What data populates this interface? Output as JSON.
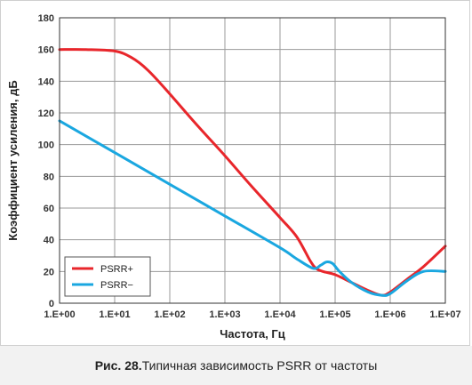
{
  "caption": {
    "lead": "Рис. 28.",
    "text": " Типичная зависимость PSRR от частоты"
  },
  "chart_data": {
    "type": "line",
    "title": "",
    "xlabel": "Частота, Гц",
    "ylabel": "Коэффициент усиления, дБ",
    "xscale": "log",
    "xlim": [
      1,
      10000000
    ],
    "ylim": [
      0,
      180
    ],
    "grid": true,
    "legend_position": "bottom-left",
    "x_ticks": [
      1,
      10,
      100,
      1000,
      10000,
      100000,
      1000000,
      10000000
    ],
    "x_tick_labels": [
      "1.E+00",
      "1.E+01",
      "1.E+02",
      "1.E+03",
      "1.E+04",
      "1.E+05",
      "1.E+06",
      "1.E+07"
    ],
    "y_ticks": [
      0,
      20,
      40,
      60,
      80,
      100,
      120,
      140,
      160,
      180
    ],
    "y_tick_labels": [
      "0",
      "20",
      "40",
      "60",
      "80",
      "100",
      "120",
      "140",
      "160",
      "180"
    ],
    "series": [
      {
        "name": "PSRR+",
        "color": "#e8262b",
        "x": [
          1,
          3,
          10,
          20,
          40,
          100,
          300,
          1000,
          3000,
          10000,
          20000,
          35000,
          45000,
          60000,
          100000,
          200000,
          400000,
          700000,
          1000000,
          2000000,
          4000000,
          10000000
        ],
        "y": [
          160,
          160,
          159,
          155,
          147,
          132,
          113,
          93,
          74,
          54,
          42,
          27,
          22,
          20,
          18,
          13,
          8,
          5,
          7,
          15,
          23,
          36
        ]
      },
      {
        "name": "PSRR−",
        "color": "#1aa7e0",
        "x": [
          1,
          10,
          100,
          1000,
          10000,
          20000,
          40000,
          55000,
          70000,
          90000,
          120000,
          200000,
          400000,
          700000,
          1000000,
          2000000,
          4000000,
          10000000
        ],
        "y": [
          115,
          95,
          75,
          55,
          35,
          28,
          22,
          24,
          26,
          25,
          20,
          13,
          7,
          5,
          6,
          14,
          20,
          20
        ]
      }
    ]
  }
}
